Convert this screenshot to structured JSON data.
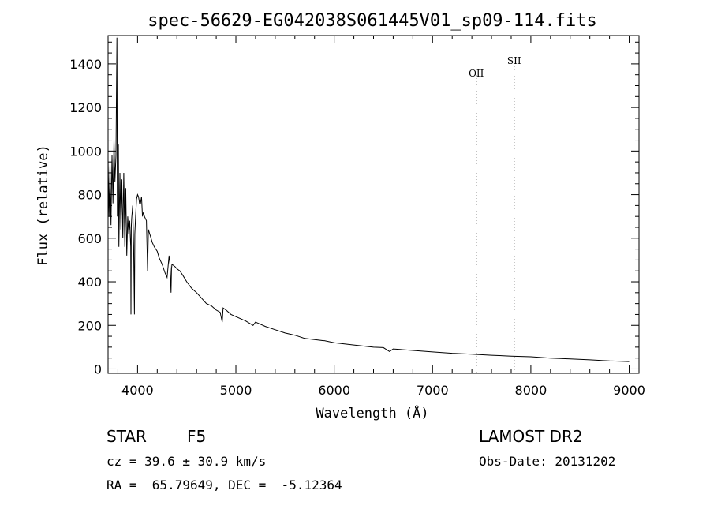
{
  "chart_data": {
    "type": "line",
    "title": "spec-56629-EG042038S061445V01_sp09-114.fits",
    "xlabel": "Wavelength (Å)",
    "ylabel": "Flux (relative)",
    "xlim": [
      3700,
      9100
    ],
    "ylim": [
      -20,
      1530
    ],
    "xticks": [
      4000,
      5000,
      6000,
      7000,
      8000,
      9000
    ],
    "yticks": [
      0,
      200,
      400,
      600,
      800,
      1000,
      1200,
      1400
    ],
    "grid": false,
    "line_color": "#000000",
    "annotations": [
      {
        "label": "OII",
        "x": 7445
      },
      {
        "label": "SII",
        "x": 7830
      }
    ],
    "series": [
      {
        "x": [
          3700,
          3710,
          3720,
          3730,
          3740,
          3750,
          3760,
          3770,
          3780,
          3790,
          3795,
          3800,
          3805,
          3810,
          3820,
          3830,
          3840,
          3850,
          3860,
          3870,
          3880,
          3890,
          3900,
          3910,
          3920,
          3930,
          3933,
          3936,
          3940,
          3950,
          3960,
          3968,
          3972,
          3980,
          3990,
          4000,
          4010,
          4020,
          4030,
          4040,
          4050,
          4060,
          4070,
          4090,
          4102,
          4110,
          4130,
          4150,
          4170,
          4200,
          4220,
          4250,
          4280,
          4300,
          4320,
          4330,
          4340,
          4345,
          4350,
          4380,
          4400,
          4430,
          4460,
          4500,
          4550,
          4600,
          4650,
          4700,
          4750,
          4800,
          4840,
          4861,
          4870,
          4900,
          4950,
          5000,
          5100,
          5175,
          5200,
          5300,
          5400,
          5500,
          5600,
          5700,
          5800,
          5890,
          5900,
          6000,
          6200,
          6400,
          6500,
          6563,
          6600,
          6800,
          7000,
          7200,
          7400,
          7600,
          7800,
          8000,
          8200,
          8400,
          8600,
          8800,
          9000
        ],
        "y": [
          960,
          700,
          940,
          660,
          980,
          760,
          1050,
          860,
          980,
          1520,
          700,
          960,
          1030,
          560,
          900,
          640,
          870,
          600,
          900,
          560,
          830,
          520,
          700,
          620,
          680,
          560,
          250,
          650,
          690,
          750,
          560,
          250,
          620,
          700,
          780,
          800,
          790,
          760,
          760,
          790,
          700,
          720,
          700,
          680,
          450,
          640,
          610,
          580,
          560,
          540,
          510,
          480,
          440,
          420,
          520,
          480,
          350,
          460,
          480,
          470,
          460,
          450,
          430,
          400,
          370,
          350,
          325,
          300,
          290,
          270,
          260,
          215,
          280,
          270,
          250,
          240,
          220,
          200,
          215,
          195,
          180,
          165,
          155,
          140,
          135,
          130,
          130,
          120,
          110,
          100,
          98,
          80,
          92,
          85,
          78,
          72,
          68,
          63,
          59,
          56,
          50,
          46,
          42,
          37,
          34
        ]
      }
    ]
  },
  "footer": {
    "class_label": "STAR",
    "subclass": "F5",
    "survey": "LAMOST DR2",
    "cz": "cz = 39.6 ± 30.9 km/s",
    "obs_date": "Obs-Date: 20131202",
    "coords": "RA =  65.79649, DEC =  -5.12364"
  }
}
